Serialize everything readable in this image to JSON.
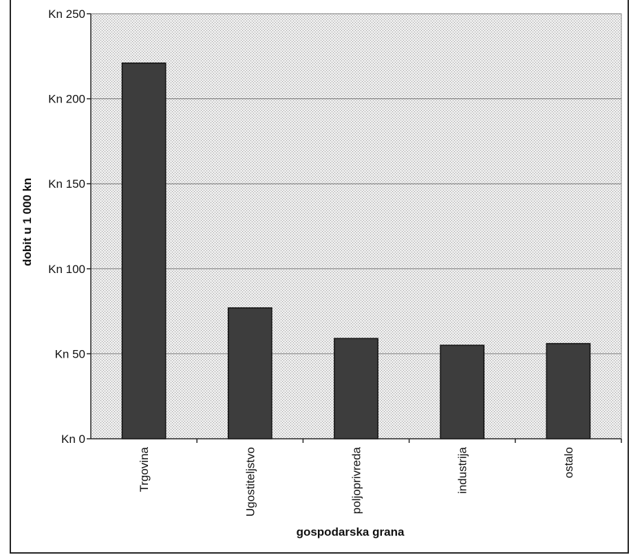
{
  "chart_data": {
    "type": "bar",
    "title": "",
    "xlabel": "gospodarska grana",
    "ylabel": "dobit u 1 000 kn",
    "categories": [
      "Trgovina",
      "Ugostiteljstvo",
      "poljoprivreda",
      "industrija",
      "ostalo"
    ],
    "values": [
      221,
      77,
      59,
      55,
      56
    ],
    "ylim": [
      0,
      250
    ],
    "yticks": [
      0,
      50,
      100,
      150,
      200,
      250
    ],
    "ytick_labels": [
      "Kn 0",
      "Kn 50",
      "Kn 100",
      "Kn 150",
      "Kn 200",
      "Kn 250"
    ],
    "grid": true,
    "legend": "none",
    "colors": {
      "bar": "#3d3d3d",
      "plot_background": "#d9d9d9",
      "gridline": "#777777"
    }
  }
}
